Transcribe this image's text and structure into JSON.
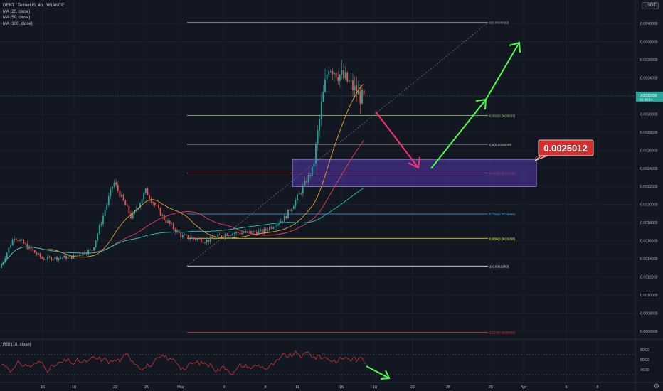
{
  "legend": {
    "symbol": "DENT / TetherUS, 4h, BINANCE",
    "ma25": "MA (25, close)",
    "ma50": "MA (50, close)",
    "ma100": "MA (100, close)"
  },
  "rsi_title": "RSI (10, close)",
  "currency": "USDT",
  "gear": "⚙",
  "colors": {
    "background": "#131722",
    "up": "#26a69a",
    "down": "#ef5350",
    "ma25": "#e0a23a",
    "ma50": "#e0455a",
    "ma100": "#26c6b6",
    "zone": "#5b3bb8",
    "bubble": "#d32f2f",
    "arrow_down": "#ff2e6e",
    "arrow_up": "#4cff4c",
    "rsi": "#e53935"
  },
  "chart_data": {
    "type": "candlestick",
    "y_ticks": [
      "0.0040000",
      "0.0038000",
      "0.0036000",
      "0.0034000",
      "0.0032000",
      "0.0030000",
      "0.0028000",
      "0.0026000",
      "0.0024000",
      "0.0022000",
      "0.0020000",
      "0.0018000",
      "0.0016000",
      "0.0014000",
      "0.0012000",
      "0.0010000",
      "0.0008000",
      "0.0006000"
    ],
    "x_ticks": [
      "15",
      "18",
      "22",
      "25",
      "Mar",
      "4",
      "8",
      "11",
      "15",
      "18",
      "22",
      "25",
      "29",
      "Apr",
      "5",
      "8"
    ],
    "current_price": "0.0032000",
    "countdown": "01:36:14",
    "fib_levels": [
      {
        "ratio": 0,
        "label": "0(0.0040099)",
        "price": 0.0040099,
        "color": "#b2b5be"
      },
      {
        "ratio": 0.382,
        "label": "0.382(0.0029823)",
        "price": 0.0029823,
        "color": "#9ccc65"
      },
      {
        "ratio": 0.5,
        "label": "0.5(0.0026649)",
        "price": 0.0026649,
        "color": "#c8c8c8"
      },
      {
        "ratio": 0.618,
        "label": "0.618(0.0023475)",
        "price": 0.0023475,
        "color": "#ef5350"
      },
      {
        "ratio": 0.786,
        "label": "0.786(0.0018956)",
        "price": 0.0018956,
        "color": "#42a5f5"
      },
      {
        "ratio": 0.886,
        "label": "0.886(0.0016266)",
        "price": 0.0016266,
        "color": "#ffeb3b"
      },
      {
        "ratio": 1,
        "label": "1(0.0013200)",
        "price": 0.00132,
        "color": "#e0e0e0"
      },
      {
        "ratio": 1.272,
        "label": "1.272(0.0005885)",
        "price": 0.0005885,
        "color": "#e53935"
      }
    ],
    "target_label": "0.0025012",
    "target_zone": [
      0.0022,
      0.0025
    ],
    "rsi_ticks": [
      "80.00",
      "60.00",
      "40.00"
    ],
    "rsi_bands": [
      70,
      30
    ]
  }
}
